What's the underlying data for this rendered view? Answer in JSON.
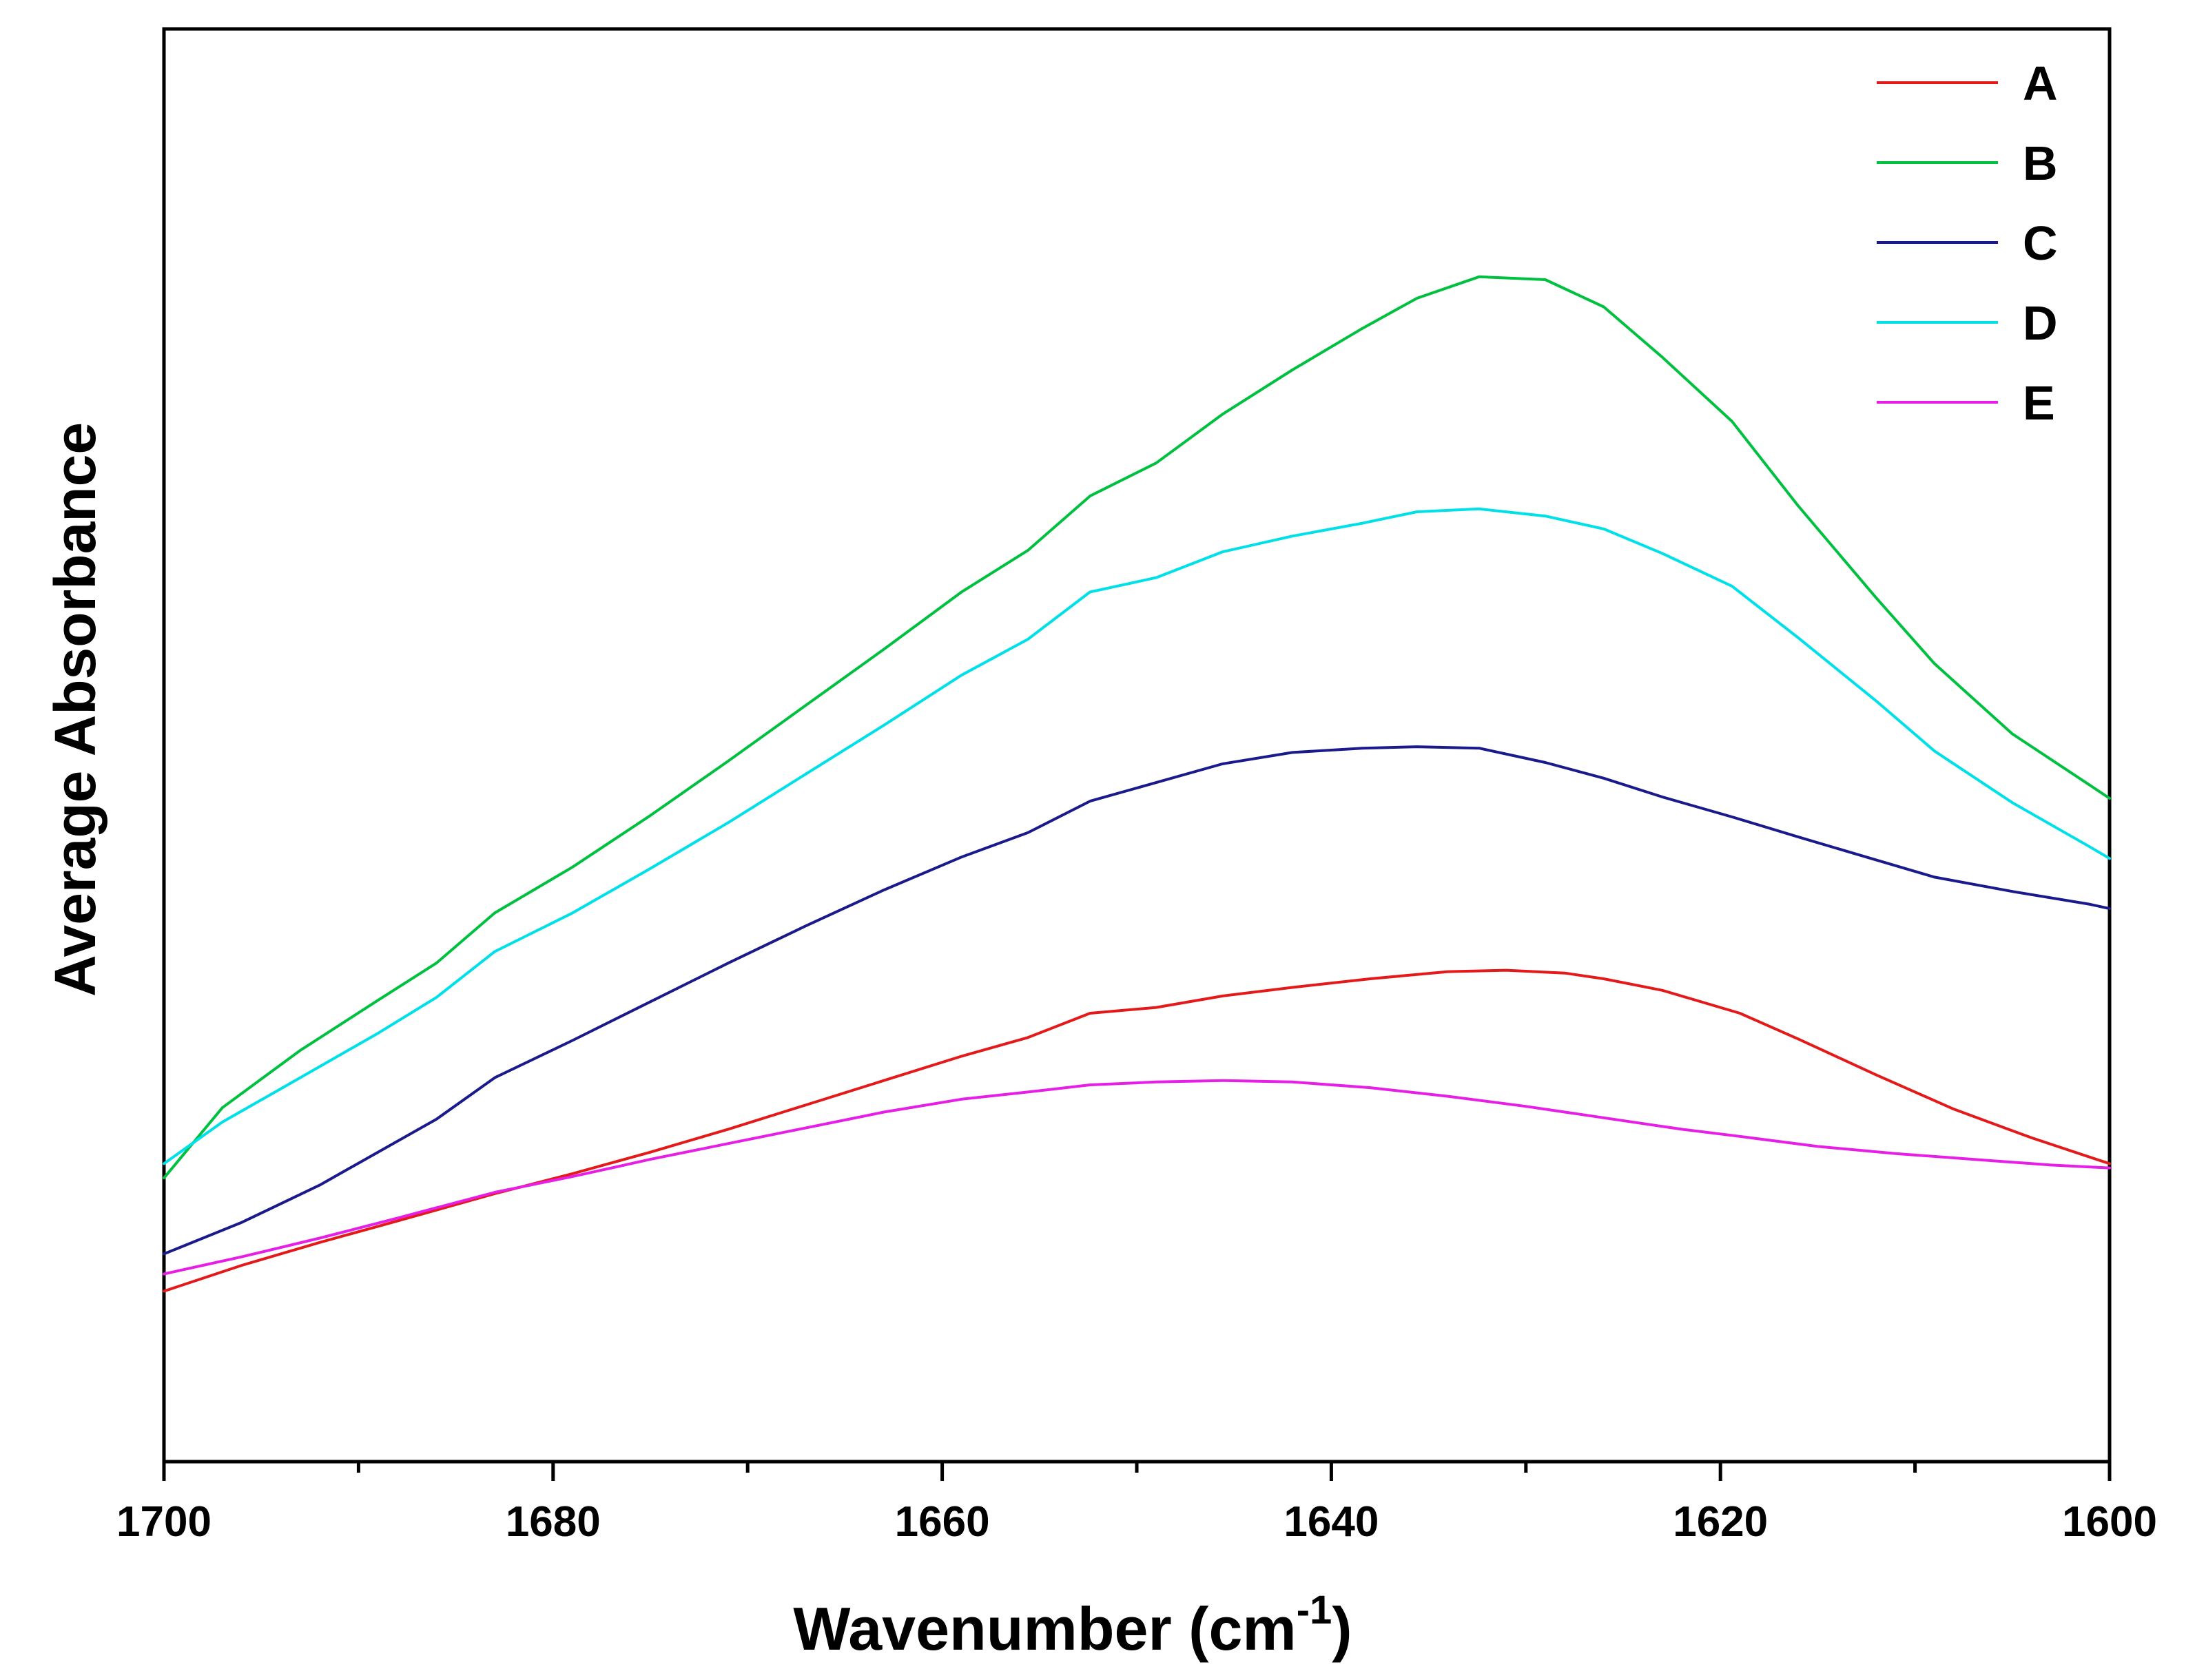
{
  "chart_data": {
    "type": "line",
    "xlabel": "Wavenumber (cm",
    "xlabel_sup": "-1",
    "xlabel_close": ")",
    "ylabel": "Average Absorbance",
    "xlim": [
      1700,
      1600
    ],
    "x_reversed": true,
    "ylim": [
      0,
      1
    ],
    "yticks_shown": false,
    "xticks": [
      1700,
      1680,
      1660,
      1640,
      1620,
      1600
    ],
    "x_minor_ticks": [
      1690,
      1670,
      1650,
      1630,
      1610
    ],
    "legend_position": "top-right",
    "grid": false,
    "series": [
      {
        "name": "A",
        "color": "#e41a1a",
        "x": [
          1700,
          1696,
          1692,
          1688,
          1683,
          1679,
          1675,
          1671,
          1667,
          1663,
          1659,
          1655.6,
          1652.4,
          1649,
          1645.6,
          1642,
          1638,
          1634,
          1631,
          1628,
          1626,
          1623,
          1619,
          1616,
          1612,
          1608,
          1604,
          1600
        ],
        "y": [
          0.119,
          0.137,
          0.153,
          0.168,
          0.187,
          0.201,
          0.216,
          0.232,
          0.249,
          0.266,
          0.283,
          0.296,
          0.313,
          0.317,
          0.325,
          0.331,
          0.337,
          0.342,
          0.343,
          0.341,
          0.337,
          0.329,
          0.313,
          0.295,
          0.27,
          0.246,
          0.226,
          0.208
        ]
      },
      {
        "name": "B",
        "color": "#00c040",
        "x": [
          1700,
          1697,
          1693,
          1689,
          1686,
          1683,
          1679,
          1675,
          1671,
          1667,
          1663,
          1659,
          1655.6,
          1652.4,
          1649,
          1645.6,
          1642,
          1638.4,
          1635.6,
          1632.4,
          1629,
          1626,
          1623,
          1619.4,
          1616,
          1612,
          1609,
          1605,
          1601,
          1600
        ],
        "y": [
          0.198,
          0.247,
          0.287,
          0.322,
          0.348,
          0.383,
          0.415,
          0.451,
          0.489,
          0.528,
          0.567,
          0.607,
          0.636,
          0.674,
          0.697,
          0.731,
          0.762,
          0.791,
          0.812,
          0.827,
          0.825,
          0.806,
          0.771,
          0.726,
          0.667,
          0.603,
          0.557,
          0.508,
          0.472,
          0.463
        ]
      },
      {
        "name": "C",
        "color": "#1a1a8c",
        "x": [
          1700,
          1696,
          1692,
          1689,
          1686,
          1683,
          1679,
          1675,
          1671,
          1667,
          1663,
          1659,
          1655.6,
          1652.4,
          1649,
          1645.6,
          1642,
          1638.4,
          1635.6,
          1632.4,
          1629,
          1626,
          1623,
          1619.4,
          1616,
          1612,
          1609,
          1605,
          1601,
          1600
        ],
        "y": [
          0.145,
          0.167,
          0.193,
          0.216,
          0.239,
          0.268,
          0.294,
          0.321,
          0.348,
          0.374,
          0.399,
          0.422,
          0.439,
          0.461,
          0.474,
          0.487,
          0.495,
          0.498,
          0.499,
          0.498,
          0.488,
          0.477,
          0.464,
          0.45,
          0.436,
          0.42,
          0.408,
          0.398,
          0.389,
          0.386
        ]
      },
      {
        "name": "D",
        "color": "#00e0e8",
        "x": [
          1700,
          1697,
          1693,
          1689,
          1686,
          1683,
          1679,
          1675,
          1671,
          1667,
          1663,
          1659,
          1655.6,
          1652.4,
          1649,
          1645.6,
          1642,
          1638.4,
          1635.6,
          1632.4,
          1629,
          1626,
          1623,
          1619.4,
          1616,
          1612,
          1609,
          1605,
          1601,
          1600
        ],
        "y": [
          0.208,
          0.237,
          0.268,
          0.299,
          0.324,
          0.356,
          0.383,
          0.414,
          0.446,
          0.48,
          0.514,
          0.549,
          0.574,
          0.607,
          0.617,
          0.635,
          0.646,
          0.655,
          0.663,
          0.665,
          0.66,
          0.651,
          0.634,
          0.611,
          0.575,
          0.531,
          0.496,
          0.46,
          0.429,
          0.421
        ]
      },
      {
        "name": "E",
        "color": "#e61ee6",
        "x": [
          1700,
          1696,
          1692,
          1688,
          1683,
          1679,
          1675,
          1671,
          1667,
          1663,
          1659,
          1655.6,
          1652.4,
          1649,
          1645.6,
          1642,
          1638,
          1634,
          1630,
          1626,
          1622,
          1619,
          1615,
          1611,
          1607,
          1603,
          1600
        ],
        "y": [
          0.131,
          0.143,
          0.156,
          0.17,
          0.188,
          0.199,
          0.211,
          0.222,
          0.233,
          0.244,
          0.253,
          0.258,
          0.263,
          0.265,
          0.266,
          0.265,
          0.261,
          0.255,
          0.248,
          0.24,
          0.232,
          0.227,
          0.22,
          0.215,
          0.211,
          0.207,
          0.205
        ]
      }
    ]
  }
}
